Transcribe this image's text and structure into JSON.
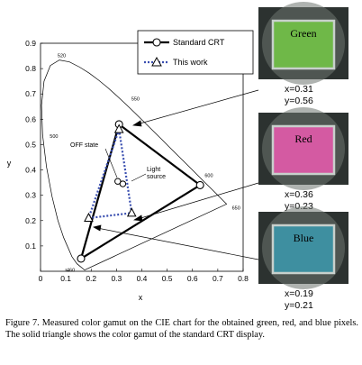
{
  "figure": {
    "caption": "Figure 7.  Measured color gamut on the CIE chart for the obtained green, red, and blue pixels. The solid triangle shows the color gamut of the standard CRT display.",
    "annotations": {
      "off_state": "OFF state",
      "light_source": "Light\nsource"
    },
    "wavelength_labels": [
      "520",
      "550",
      "500",
      "600",
      "650",
      "460"
    ],
    "swatches": [
      {
        "title": "Green",
        "x_label": "x=0.31",
        "y_label": "y=0.56",
        "fill": "#6fb848"
      },
      {
        "title": "Red",
        "x_label": "x=0.36",
        "y_label": "y=0.23",
        "fill": "#d45aa2"
      },
      {
        "title": "Blue",
        "x_label": "x=0.19",
        "y_label": "y=0.21",
        "fill": "#3e8fa0"
      }
    ]
  },
  "chart_data": {
    "type": "scatter",
    "title": "",
    "xlabel": "x",
    "ylabel": "y",
    "xlim": [
      0,
      0.8
    ],
    "ylim": [
      0,
      0.9
    ],
    "xticks": [
      "0",
      "0.1",
      "0.2",
      "0.3",
      "0.4",
      "0.5",
      "0.6",
      "0.7",
      "0.8"
    ],
    "yticks": [
      "0.1",
      "0.2",
      "0.3",
      "0.4",
      "0.5",
      "0.6",
      "0.7",
      "0.8",
      "0.9"
    ],
    "legend_position": "top-right",
    "grid": false,
    "spectral_locus": [
      {
        "x": 0.1741,
        "y": 0.005
      },
      {
        "x": 0.144,
        "y": 0.0297
      },
      {
        "x": 0.1241,
        "y": 0.0578
      },
      {
        "x": 0.0913,
        "y": 0.1327
      },
      {
        "x": 0.0687,
        "y": 0.2007
      },
      {
        "x": 0.0454,
        "y": 0.295
      },
      {
        "x": 0.0235,
        "y": 0.4127
      },
      {
        "x": 0.0082,
        "y": 0.5384
      },
      {
        "x": 0.0039,
        "y": 0.6548
      },
      {
        "x": 0.0139,
        "y": 0.7502
      },
      {
        "x": 0.0389,
        "y": 0.812
      },
      {
        "x": 0.0743,
        "y": 0.8338
      },
      {
        "x": 0.1142,
        "y": 0.8262
      },
      {
        "x": 0.1547,
        "y": 0.8059
      },
      {
        "x": 0.1929,
        "y": 0.7816
      },
      {
        "x": 0.2296,
        "y": 0.7543
      },
      {
        "x": 0.2658,
        "y": 0.7243
      },
      {
        "x": 0.3016,
        "y": 0.6923
      },
      {
        "x": 0.3373,
        "y": 0.6589
      },
      {
        "x": 0.3731,
        "y": 0.6245
      },
      {
        "x": 0.4087,
        "y": 0.5896
      },
      {
        "x": 0.4441,
        "y": 0.5547
      },
      {
        "x": 0.4788,
        "y": 0.5202
      },
      {
        "x": 0.5125,
        "y": 0.4866
      },
      {
        "x": 0.5448,
        "y": 0.4544
      },
      {
        "x": 0.5752,
        "y": 0.4242
      },
      {
        "x": 0.6029,
        "y": 0.3965
      },
      {
        "x": 0.627,
        "y": 0.3725
      },
      {
        "x": 0.6482,
        "y": 0.3514
      },
      {
        "x": 0.6658,
        "y": 0.334
      },
      {
        "x": 0.6915,
        "y": 0.3083
      },
      {
        "x": 0.7347,
        "y": 0.2653
      }
    ],
    "series": [
      {
        "name": "Standard CRT",
        "style": "solid",
        "color": "#000000",
        "points": [
          {
            "label": "green",
            "x": 0.31,
            "y": 0.58
          },
          {
            "label": "red",
            "x": 0.63,
            "y": 0.34
          },
          {
            "label": "blue",
            "x": 0.16,
            "y": 0.05
          }
        ]
      },
      {
        "name": "This work",
        "style": "dotted",
        "color": "#3a4fb0",
        "points": [
          {
            "label": "green",
            "x": 0.31,
            "y": 0.56
          },
          {
            "label": "red",
            "x": 0.36,
            "y": 0.23
          },
          {
            "label": "blue",
            "x": 0.19,
            "y": 0.21
          }
        ]
      }
    ],
    "extra_points": [
      {
        "label": "OFF state",
        "x": 0.305,
        "y": 0.355
      },
      {
        "label": "Light source",
        "x": 0.325,
        "y": 0.345
      }
    ]
  }
}
